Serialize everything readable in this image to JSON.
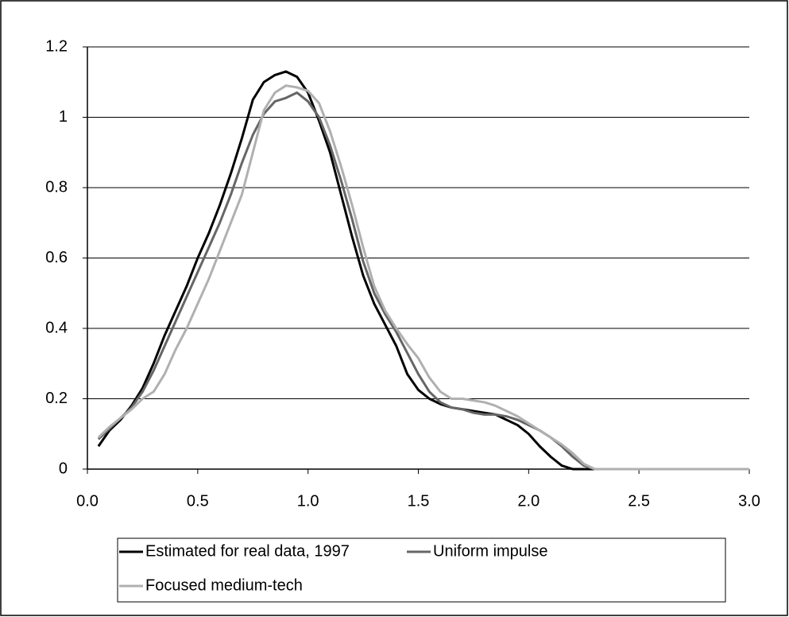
{
  "chart_data": {
    "type": "line",
    "x": [
      0.05,
      0.1,
      0.15,
      0.2,
      0.25,
      0.3,
      0.35,
      0.4,
      0.45,
      0.5,
      0.55,
      0.6,
      0.65,
      0.7,
      0.75,
      0.8,
      0.85,
      0.9,
      0.95,
      1.0,
      1.05,
      1.1,
      1.15,
      1.2,
      1.25,
      1.3,
      1.35,
      1.4,
      1.45,
      1.5,
      1.55,
      1.6,
      1.65,
      1.7,
      1.75,
      1.8,
      1.85,
      1.9,
      1.95,
      2.0,
      2.05,
      2.1,
      2.15,
      2.2,
      2.25,
      2.3,
      2.35,
      2.4,
      2.45,
      2.5,
      2.55,
      2.6,
      2.65,
      2.7,
      2.75,
      2.8,
      2.85,
      2.9,
      2.95,
      3.0
    ],
    "series": [
      {
        "name": "Estimated for real data, 1997",
        "color": "#000000",
        "values": [
          0.065,
          0.11,
          0.14,
          0.18,
          0.23,
          0.3,
          0.38,
          0.45,
          0.52,
          0.6,
          0.67,
          0.75,
          0.84,
          0.94,
          1.05,
          1.1,
          1.12,
          1.13,
          1.115,
          1.07,
          0.99,
          0.9,
          0.78,
          0.66,
          0.55,
          0.47,
          0.41,
          0.35,
          0.27,
          0.225,
          0.2,
          0.185,
          0.175,
          0.17,
          0.165,
          0.16,
          0.155,
          0.14,
          0.125,
          0.1,
          0.065,
          0.035,
          0.01,
          0,
          0,
          0,
          0,
          0,
          0,
          0,
          0,
          0,
          0,
          0,
          0,
          0,
          0,
          0,
          0,
          0
        ]
      },
      {
        "name": "Uniform impulse",
        "color": "#666666",
        "values": [
          0.085,
          0.115,
          0.145,
          0.175,
          0.22,
          0.28,
          0.35,
          0.42,
          0.49,
          0.56,
          0.63,
          0.7,
          0.78,
          0.87,
          0.95,
          1.01,
          1.045,
          1.055,
          1.07,
          1.045,
          1.0,
          0.92,
          0.82,
          0.71,
          0.59,
          0.5,
          0.44,
          0.39,
          0.33,
          0.27,
          0.22,
          0.19,
          0.175,
          0.17,
          0.16,
          0.155,
          0.155,
          0.15,
          0.14,
          0.125,
          0.11,
          0.09,
          0.065,
          0.035,
          0.01,
          0,
          0,
          0,
          0,
          0,
          0,
          0,
          0,
          0,
          0,
          0,
          0,
          0,
          0,
          0
        ]
      },
      {
        "name": "Focused medium-tech",
        "color": "#b0b0b0",
        "values": [
          0.09,
          0.12,
          0.145,
          0.17,
          0.2,
          0.22,
          0.27,
          0.34,
          0.4,
          0.47,
          0.54,
          0.62,
          0.7,
          0.78,
          0.9,
          1.02,
          1.07,
          1.09,
          1.085,
          1.075,
          1.04,
          0.96,
          0.86,
          0.75,
          0.63,
          0.52,
          0.45,
          0.4,
          0.355,
          0.315,
          0.26,
          0.22,
          0.2,
          0.2,
          0.195,
          0.19,
          0.18,
          0.165,
          0.15,
          0.13,
          0.11,
          0.09,
          0.07,
          0.045,
          0.015,
          0,
          0,
          0,
          0,
          0,
          0,
          0,
          0,
          0,
          0,
          0,
          0,
          0,
          0,
          0
        ]
      }
    ],
    "xlim": [
      0,
      3.0
    ],
    "xticks": [
      {
        "value": 0,
        "label": "0.0"
      },
      0.5,
      {
        "value": 1,
        "label": "1.0"
      },
      1.5,
      {
        "value": 2,
        "label": "2.0"
      },
      2.5,
      {
        "value": 3,
        "label": "3.0"
      }
    ],
    "ylim": [
      0,
      1.2
    ],
    "yticks": [
      0,
      0.2,
      0.4,
      0.6,
      0.8,
      1,
      1.2
    ],
    "grid": true,
    "legend": "bottom"
  }
}
